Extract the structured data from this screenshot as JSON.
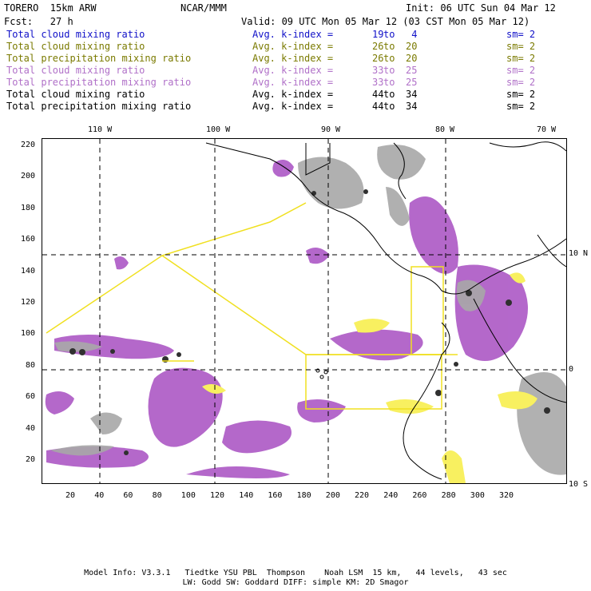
{
  "header": {
    "model": "TORERO  15km ARW",
    "center": "NCAR/MMM",
    "init": "Init: 06 UTC Sun 04 Mar 12",
    "fcst": "Fcst:   27 h",
    "valid": "Valid: 09 UTC Mon 05 Mar 12 (03 CST Mon 05 Mar 12)"
  },
  "legend": [
    {
      "field": "Total cloud mixing ratio",
      "kidx": "Avg. k-index =",
      "a": "19",
      "to": "to",
      "b": " 4",
      "sm": "sm= 2",
      "color": "#1010c8"
    },
    {
      "field": "Total cloud mixing ratio",
      "kidx": "Avg. k-index =",
      "a": "26",
      "to": "to",
      "b": "20",
      "sm": "sm= 2",
      "color": "#7a7a00"
    },
    {
      "field": "Total precipitation mixing ratio",
      "kidx": "Avg. k-index =",
      "a": "26",
      "to": "to",
      "b": "20",
      "sm": "sm= 2",
      "color": "#7a7a00"
    },
    {
      "field": "Total cloud mixing ratio",
      "kidx": "Avg. k-index =",
      "a": "33",
      "to": "to",
      "b": "25",
      "sm": "sm= 2",
      "color": "#b070c8"
    },
    {
      "field": "Total precipitation mixing ratio",
      "kidx": "Avg. k-index =",
      "a": "33",
      "to": "to",
      "b": "25",
      "sm": "sm= 2",
      "color": "#b070c8"
    },
    {
      "field": "Total cloud mixing ratio",
      "kidx": "Avg. k-index =",
      "a": "44",
      "to": "to",
      "b": "34",
      "sm": "sm= 2",
      "color": "#000000"
    },
    {
      "field": "Total precipitation mixing ratio",
      "kidx": "Avg. k-index =",
      "a": "44",
      "to": "to",
      "b": "34",
      "sm": "sm= 2",
      "color": "#000000"
    }
  ],
  "axes": {
    "lon_labels": [
      "110 W",
      "100 W",
      "90 W",
      "80 W",
      "70 W"
    ],
    "lat_labels": [
      "10 N",
      "0",
      "10 S"
    ],
    "x_ticks": [
      "20",
      "40",
      "60",
      "80",
      "100",
      "120",
      "140",
      "160",
      "180",
      "200",
      "220",
      "240",
      "260",
      "280",
      "300",
      "320"
    ],
    "y_ticks": [
      "220",
      "200",
      "180",
      "160",
      "140",
      "120",
      "100",
      "80",
      "60",
      "40",
      "20"
    ]
  },
  "footer": {
    "line1": "Model Info: V3.3.1   Tiedtke YSU PBL  Thompson    Noah LSM  15 km,   44 levels,   43 sec",
    "line2": "LW: Godd SW: Goddard DIFF: simple KM: 2D Smagor"
  },
  "colors": {
    "purple": "#b060c8",
    "gray": "#a8a8a8",
    "yellow": "#f8f060",
    "box": "#f0e020"
  }
}
